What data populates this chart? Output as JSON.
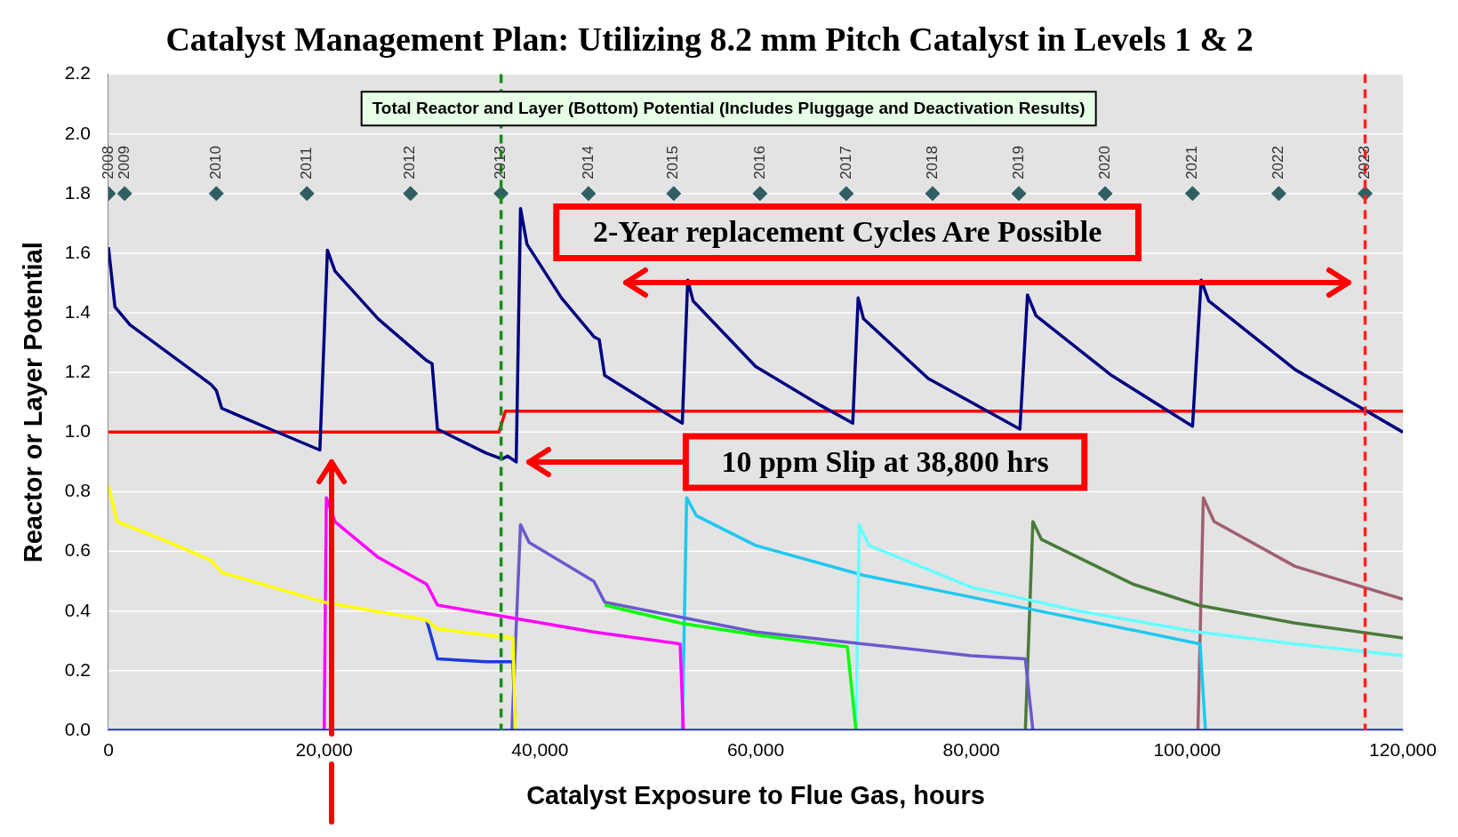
{
  "chart_data": {
    "type": "line",
    "title": "Catalyst Management Plan: Utilizing 8.2 mm Pitch Catalyst in Levels 1 & 2",
    "xlabel": "Catalyst Exposure to Flue Gas, hours",
    "ylabel": "Reactor or Layer Potential",
    "xlim": [
      0,
      120000
    ],
    "xticks": [
      {
        "value": 0,
        "label": "0"
      },
      {
        "value": 20000,
        "label": "20,000"
      },
      {
        "value": 40000,
        "label": "40,000"
      },
      {
        "value": 60000,
        "label": "60,000"
      },
      {
        "value": 80000,
        "label": "80,000"
      },
      {
        "value": 100000,
        "label": "100,000"
      },
      {
        "value": 120000,
        "label": "120,000"
      }
    ],
    "ylim": [
      0,
      2.2
    ],
    "yticks": [
      {
        "value": 0,
        "label": "0.0"
      },
      {
        "value": 0.2,
        "label": "0.2"
      },
      {
        "value": 0.4,
        "label": "0.4"
      },
      {
        "value": 0.6,
        "label": "0.6"
      },
      {
        "value": 0.8,
        "label": "0.8"
      },
      {
        "value": 1,
        "label": "1.0"
      },
      {
        "value": 1.2,
        "label": "1.2"
      },
      {
        "value": 1.4,
        "label": "1.4"
      },
      {
        "value": 1.6,
        "label": "1.6"
      },
      {
        "value": 1.8,
        "label": "1.8"
      },
      {
        "value": 2,
        "label": "2.0"
      },
      {
        "value": 2.2,
        "label": "2.2"
      }
    ],
    "grid": "y",
    "legend": false,
    "marker": "none",
    "line_style": "solid",
    "ref_lines": [
      {
        "axis": "x",
        "value": 36400,
        "color": "#1a8a1a",
        "line_style": "dashed"
      },
      {
        "axis": "x",
        "value": 116500,
        "color": "#ff2020",
        "line_style": "dashed"
      }
    ],
    "annotations": [
      "Total Reactor and Layer (Bottom) Potential (Includes Pluggage and Deactivation Results)",
      "2-Year replacement Cycles Are Possible",
      "10 ppm Slip at 38,800 hrs",
      {
        "text": "2008",
        "x": 0,
        "y": 1.8
      },
      {
        "text": "2009",
        "x": 1500,
        "y": 1.8
      },
      {
        "text": "2010",
        "x": 10000,
        "y": 1.8
      },
      {
        "text": "2011",
        "x": 18400,
        "y": 1.8
      },
      {
        "text": "2012",
        "x": 28000,
        "y": 1.8
      },
      {
        "text": "2013",
        "x": 36400,
        "y": 1.8
      },
      {
        "text": "2014",
        "x": 44500,
        "y": 1.8
      },
      {
        "text": "2015",
        "x": 52400,
        "y": 1.8
      },
      {
        "text": "2016",
        "x": 60400,
        "y": 1.8
      },
      {
        "text": "2017",
        "x": 68400,
        "y": 1.8
      },
      {
        "text": "2018",
        "x": 76400,
        "y": 1.8
      },
      {
        "text": "2019",
        "x": 84400,
        "y": 1.8
      },
      {
        "text": "2020",
        "x": 92400,
        "y": 1.8
      },
      {
        "text": "2021",
        "x": 100500,
        "y": 1.8
      },
      {
        "text": "2022",
        "x": 108500,
        "y": 1.8
      },
      {
        "text": "2023",
        "x": 116500,
        "y": 1.8
      }
    ],
    "series": [
      {
        "color": "#2030c0",
        "x": [
          0,
          120000
        ],
        "values": [
          0,
          0
        ]
      },
      {
        "color": "#ffff00",
        "x": [
          0,
          800,
          5000,
          9500,
          10500,
          20000,
          29500,
          30500,
          35000,
          37500,
          37700
        ],
        "values": [
          0.82,
          0.7,
          0.64,
          0.57,
          0.53,
          0.43,
          0.37,
          0.34,
          0.32,
          0.31,
          0
        ]
      },
      {
        "color": "#1a3ae0",
        "x": [
          29500,
          30500,
          35000,
          37500,
          37700
        ],
        "values": [
          0.37,
          0.24,
          0.23,
          0.23,
          0
        ]
      },
      {
        "color": "#ff00ff",
        "x": [
          20000,
          20200,
          21000,
          25000,
          29500,
          30500,
          37000,
          45000,
          53000,
          53300
        ],
        "values": [
          0,
          0.78,
          0.7,
          0.58,
          0.49,
          0.42,
          0.38,
          0.33,
          0.29,
          0
        ]
      },
      {
        "color": "#00ff00",
        "x": [
          46000,
          53000,
          60000,
          68500,
          69300
        ],
        "values": [
          0.42,
          0.36,
          0.32,
          0.28,
          0
        ]
      },
      {
        "color": "#6a5acd",
        "x": [
          37400,
          38200,
          39000,
          45000,
          46000,
          53000,
          60000,
          70000,
          80000,
          85000,
          85700
        ],
        "values": [
          0,
          0.69,
          0.63,
          0.5,
          0.43,
          0.38,
          0.33,
          0.29,
          0.25,
          0.24,
          0
        ]
      },
      {
        "color": "#66ffff",
        "x": [
          69300,
          69600,
          70500,
          80000,
          90000,
          101000,
          110000,
          120000
        ],
        "values": [
          0,
          0.69,
          0.62,
          0.48,
          0.4,
          0.33,
          0.29,
          0.25
        ]
      },
      {
        "color": "#1ec8f0",
        "x": [
          53200,
          53600,
          54500,
          60000,
          70000,
          85000,
          101200,
          101700
        ],
        "values": [
          0,
          0.78,
          0.72,
          0.62,
          0.52,
          0.41,
          0.29,
          0
        ]
      },
      {
        "color": "#4a7a3a",
        "x": [
          85000,
          85700,
          86500,
          95000,
          101000,
          110000,
          120000
        ],
        "values": [
          0,
          0.7,
          0.64,
          0.49,
          0.42,
          0.36,
          0.31
        ]
      },
      {
        "color": "#a06070",
        "x": [
          101000,
          101500,
          102500,
          110000,
          120000
        ],
        "values": [
          0,
          0.78,
          0.7,
          0.55,
          0.44
        ]
      },
      {
        "color": "#000080",
        "x": [
          0,
          600,
          2000,
          5000,
          9500,
          10000,
          10500,
          15000,
          19600,
          20300,
          21000,
          25000,
          29500,
          30000,
          30500,
          35000,
          36500,
          37000,
          37800,
          38200,
          38800,
          42000,
          45000,
          45500,
          46000,
          50000,
          53200,
          53700,
          54200,
          60000,
          66000,
          69000,
          69500,
          70000,
          76000,
          84500,
          85200,
          86000,
          93000,
          100500,
          101300,
          102000,
          110000,
          120000
        ],
        "values": [
          1.62,
          1.42,
          1.36,
          1.28,
          1.16,
          1.14,
          1.08,
          1.01,
          0.94,
          1.61,
          1.54,
          1.38,
          1.24,
          1.23,
          1.01,
          0.93,
          0.91,
          0.92,
          0.9,
          1.75,
          1.63,
          1.45,
          1.32,
          1.31,
          1.19,
          1.1,
          1.03,
          1.51,
          1.44,
          1.22,
          1.09,
          1.03,
          1.45,
          1.38,
          1.18,
          1.01,
          1.46,
          1.39,
          1.19,
          1.02,
          1.51,
          1.44,
          1.21,
          1.0
        ]
      },
      {
        "color": "#ff0000",
        "x": [
          0,
          36200,
          36800,
          120000
        ],
        "values": [
          1.0,
          1.0,
          1.07,
          1.07
        ]
      },
      {
        "type": "scatter",
        "color": "#2f5f63",
        "marker": "diamond",
        "x": [
          0,
          1500,
          10000,
          18400,
          28000,
          36400,
          44500,
          52400,
          60400,
          68400,
          76400,
          84400,
          92400,
          100500,
          108500,
          116500
        ],
        "values": [
          1.8,
          1.8,
          1.8,
          1.8,
          1.8,
          1.8,
          1.8,
          1.8,
          1.8,
          1.8,
          1.8,
          1.8,
          1.8,
          1.8,
          1.8,
          1.8
        ]
      }
    ]
  }
}
